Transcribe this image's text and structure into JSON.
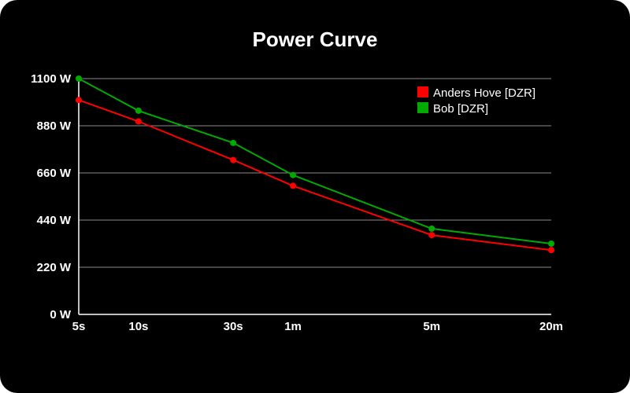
{
  "chart_data": {
    "type": "line",
    "title": "Power Curve",
    "xlabel": "",
    "ylabel": "",
    "categories": [
      "5s",
      "10s",
      "30s",
      "1m",
      "5m",
      "20m"
    ],
    "x_seconds": [
      5,
      10,
      30,
      60,
      300,
      1200
    ],
    "y_ticks": [
      "0 W",
      "220 W",
      "440 W",
      "660 W",
      "880 W",
      "1100 W"
    ],
    "y_tick_values": [
      0,
      220,
      440,
      660,
      880,
      1100
    ],
    "ylim": [
      0,
      1100
    ],
    "x_scale": "log",
    "grid": true,
    "legend_position": "top-right",
    "background": "#000000",
    "series": [
      {
        "name": "Anders Hove [DZR]",
        "color": "#ff0000",
        "values": [
          1000,
          900,
          720,
          600,
          370,
          300
        ]
      },
      {
        "name": "Bob [DZR]",
        "color": "#00aa00",
        "values": [
          1100,
          950,
          800,
          650,
          400,
          330
        ]
      }
    ]
  }
}
